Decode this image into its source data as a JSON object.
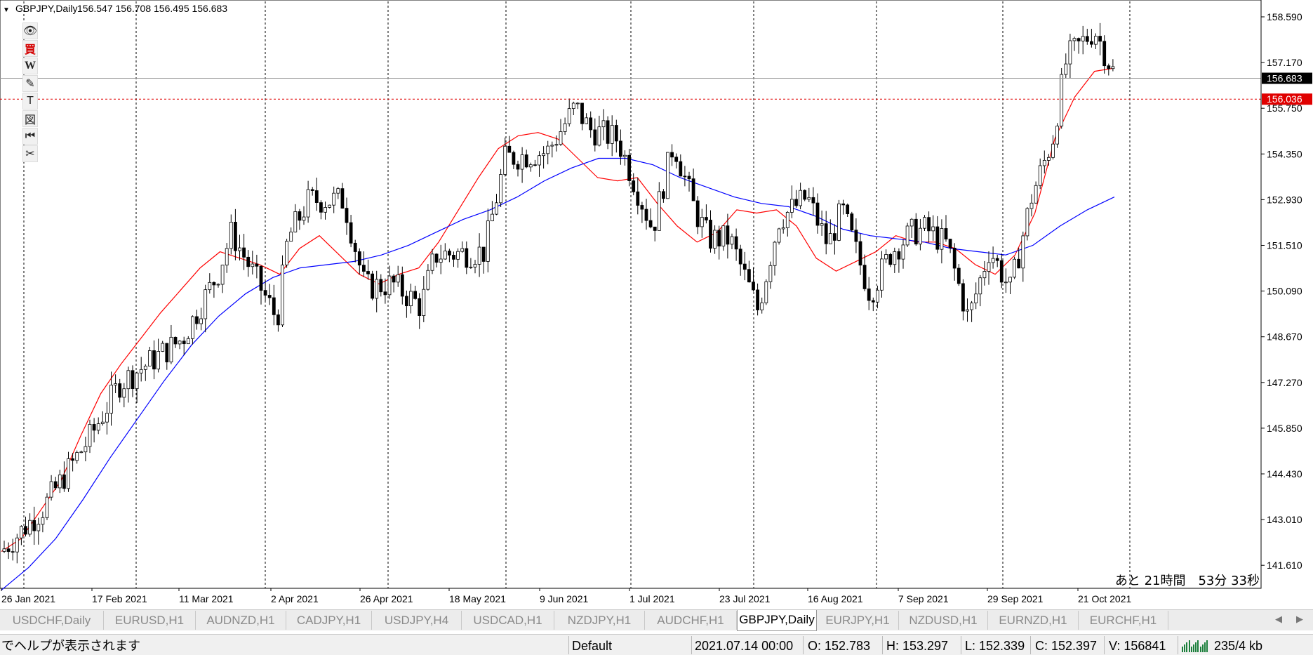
{
  "header": {
    "symbol": "GBPJPY,Daily",
    "ohlc": "156.547 156.708 156.495 156.683"
  },
  "toolbar": {
    "tools": [
      {
        "name": "eye-icon",
        "glyph": "👁"
      },
      {
        "name": "buy-icon",
        "glyph": "買"
      },
      {
        "name": "w-icon",
        "glyph": "W"
      },
      {
        "name": "pencil-icon",
        "glyph": "✎"
      },
      {
        "name": "text-icon",
        "glyph": "T"
      },
      {
        "name": "chart-icon",
        "glyph": "図"
      },
      {
        "name": "rewind-icon",
        "glyph": "⏮"
      },
      {
        "name": "scissors-icon",
        "glyph": "✂"
      }
    ]
  },
  "price_axis": {
    "labels": [
      "158.590",
      "157.170",
      "155.750",
      "154.350",
      "152.930",
      "151.510",
      "150.090",
      "148.670",
      "147.270",
      "145.850",
      "144.430",
      "143.010",
      "141.610"
    ],
    "current_price": "156.683",
    "alert_price": "156.036"
  },
  "time_axis": {
    "labels": [
      "26 Jan 2021",
      "17 Feb 2021",
      "11 Mar 2021",
      "2 Apr 2021",
      "26 Apr 2021",
      "18 May 2021",
      "9 Jun 2021",
      "1 Jul 2021",
      "23 Jul 2021",
      "16 Aug 2021",
      "7 Sep 2021",
      "29 Sep 2021",
      "21 Oct 2021"
    ]
  },
  "countdown": "あと 21時間　53分 33秒",
  "chart_data": {
    "type": "candlestick",
    "symbol": "GBPJPY",
    "timeframe": "Daily",
    "ylim": [
      141.0,
      158.9
    ],
    "grid": "vertical dashed lines",
    "series": [
      {
        "name": "",
        "color": "#ff0000",
        "values": [
          142.0,
          142.4,
          143.3,
          144.2,
          145.6,
          146.9,
          147.8,
          148.6,
          149.4,
          150.1,
          150.8,
          151.3,
          151.1,
          150.9,
          150.6,
          151.4,
          151.8,
          151.2,
          150.6,
          150.3,
          150.6,
          150.8,
          151.6,
          152.6,
          153.6,
          154.5,
          154.9,
          155.0,
          154.8,
          154.2,
          153.6,
          153.5,
          153.6,
          152.8,
          152.1,
          151.6,
          151.9,
          152.6,
          152.5,
          152.6,
          152.1,
          151.1,
          150.7,
          151.0,
          151.3,
          151.8,
          151.6,
          151.6,
          151.4,
          150.9,
          150.6,
          151.2,
          152.5,
          154.8,
          156.1,
          156.9,
          157.0
        ]
      },
      {
        "name": "",
        "color": "#0000ff",
        "values": [
          140.8,
          141.5,
          142.4,
          143.6,
          144.9,
          146.1,
          147.3,
          148.4,
          149.3,
          150.0,
          150.5,
          150.8,
          150.9,
          151.0,
          151.2,
          151.5,
          151.9,
          152.3,
          152.6,
          153.0,
          153.5,
          153.9,
          154.2,
          154.2,
          154.0,
          153.6,
          153.3,
          153.0,
          152.8,
          152.7,
          152.4,
          152.0,
          151.8,
          151.7,
          151.6,
          151.4,
          151.3,
          151.2,
          151.5,
          152.1,
          152.6,
          153.0
        ]
      }
    ],
    "candles_approx": [
      {
        "date": "26 Jan 2021",
        "close": 143.2
      },
      {
        "date": "17 Feb 2021",
        "close": 148.4
      },
      {
        "date": "11 Mar 2021",
        "close": 151.5
      },
      {
        "date": "2 Apr 2021",
        "close": 152.9
      },
      {
        "date": "26 Apr 2021",
        "close": 151.3
      },
      {
        "date": "18 May 2021",
        "close": 154.4
      },
      {
        "date": "9 Jun 2021",
        "close": 155.0
      },
      {
        "date": "1 Jul 2021",
        "close": 153.2
      },
      {
        "date": "23 Jul 2021",
        "close": 152.3
      },
      {
        "date": "16 Aug 2021",
        "close": 150.7
      },
      {
        "date": "7 Sep 2021",
        "close": 151.9
      },
      {
        "date": "29 Sep 2021",
        "close": 150.2
      },
      {
        "date": "21 Oct 2021",
        "close": 156.7
      }
    ],
    "horizontal_lines": [
      {
        "value": 156.683,
        "color": "#9a9a9a",
        "style": "solid"
      },
      {
        "value": 156.036,
        "color": "#e00000",
        "style": "dashed"
      }
    ]
  },
  "tabs": {
    "items": [
      "USDCHF,Daily",
      "EURUSD,H1",
      "AUDNZD,H1",
      "CADJPY,H1",
      "USDJPY,H4",
      "USDCAD,H1",
      "NZDJPY,H1",
      "AUDCHF,H1",
      "GBPJPY,Daily",
      "EURJPY,H1",
      "NZDUSD,H1",
      "EURNZD,H1",
      "EURCHF,H1"
    ],
    "active": "GBPJPY,Daily"
  },
  "status": {
    "help": "でヘルプが表示されます",
    "profile": "Default",
    "datetime": "2021.07.14 00:00",
    "open": "O: 152.783",
    "high": "H: 153.297",
    "low": "L: 152.339",
    "close": "C: 152.397",
    "volume": "V: 156841",
    "traffic": "235/4 kb"
  }
}
